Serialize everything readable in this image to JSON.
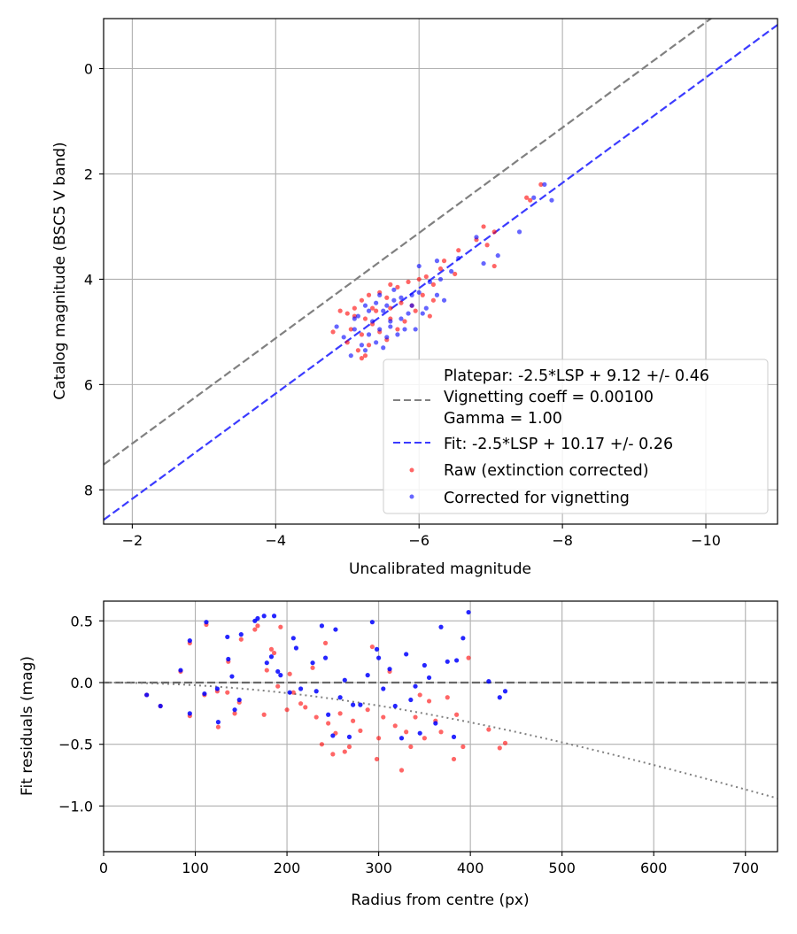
{
  "colors": {
    "raw": "#ff0000",
    "corrected": "#0000ff",
    "platepar_line": "#808080",
    "fit_line": "#3b3bff"
  },
  "chart_data": [
    {
      "type": "scatter",
      "xlabel": "Uncalibrated magnitude",
      "ylabel": "Catalog magnitude (BSC5 V band)",
      "xlim": [
        -1.6,
        -11.0
      ],
      "ylim": [
        8.65,
        -0.95
      ],
      "x_inverted": true,
      "y_inverted": true,
      "xticks": [
        -2,
        -4,
        -6,
        -8,
        -10
      ],
      "xtick_labels": [
        "−2",
        "−4",
        "−6",
        "−8",
        "−10"
      ],
      "yticks": [
        0,
        2,
        4,
        6,
        8
      ],
      "ytick_labels": [
        "0",
        "2",
        "4",
        "6",
        "8"
      ],
      "grid": true,
      "legend_position": "lower-right",
      "legend": [
        {
          "kind": "blank",
          "label": "Platepar: -2.5*LSP + 9.12 +/- 0.46"
        },
        {
          "kind": "dashed",
          "color": "#808080",
          "label": "Vignetting coeff = 0.00100"
        },
        {
          "kind": "blank",
          "label": "Gamma = 1.00"
        },
        {
          "kind": "dashed",
          "color": "#3b3bff",
          "label": "Fit: -2.5*LSP + 10.17 +/- 0.26"
        },
        {
          "kind": "marker",
          "color": "#ff0000",
          "label": "Raw (extinction corrected)"
        },
        {
          "kind": "marker",
          "color": "#0000ff",
          "label": "Corrected for vignetting"
        }
      ],
      "lines": [
        {
          "name": "Platepar",
          "slope": 1,
          "intercept": 9.12,
          "style": "dashed",
          "color": "#808080"
        },
        {
          "name": "Fit",
          "slope": 1,
          "intercept": 10.17,
          "style": "dashed",
          "color": "#3b3bff"
        }
      ],
      "series": [
        {
          "name": "Raw (extinction corrected)",
          "color": "#ff0000",
          "points": [
            [
              -7.7,
              2.2
            ],
            [
              -7.55,
              2.5
            ],
            [
              -7.5,
              2.45
            ],
            [
              -7.05,
              3.1
            ],
            [
              -6.9,
              3.0
            ],
            [
              -6.95,
              3.35
            ],
            [
              -7.05,
              3.75
            ],
            [
              -6.8,
              3.25
            ],
            [
              -6.55,
              3.45
            ],
            [
              -6.35,
              3.65
            ],
            [
              -6.3,
              3.8
            ],
            [
              -6.1,
              3.95
            ],
            [
              -6.5,
              3.9
            ],
            [
              -6.2,
              4.1
            ],
            [
              -6.0,
              4.0
            ],
            [
              -5.85,
              4.05
            ],
            [
              -5.7,
              4.15
            ],
            [
              -5.6,
              4.1
            ],
            [
              -5.45,
              4.25
            ],
            [
              -5.3,
              4.3
            ],
            [
              -5.2,
              4.4
            ],
            [
              -5.55,
              4.35
            ],
            [
              -5.75,
              4.45
            ],
            [
              -5.9,
              4.5
            ],
            [
              -6.05,
              4.3
            ],
            [
              -6.2,
              4.4
            ],
            [
              -5.4,
              4.6
            ],
            [
              -5.1,
              4.55
            ],
            [
              -5.0,
              4.65
            ],
            [
              -4.9,
              4.6
            ],
            [
              -5.25,
              4.75
            ],
            [
              -5.35,
              4.85
            ],
            [
              -5.6,
              4.75
            ],
            [
              -5.8,
              4.8
            ],
            [
              -5.05,
              4.95
            ],
            [
              -4.8,
              5.0
            ],
            [
              -5.2,
              5.05
            ],
            [
              -5.45,
              5.0
            ],
            [
              -5.7,
              4.95
            ],
            [
              -5.55,
              5.15
            ],
            [
              -5.3,
              5.25
            ],
            [
              -5.15,
              5.35
            ],
            [
              -5.2,
              5.5
            ],
            [
              -5.0,
              5.2
            ],
            [
              -5.6,
              4.55
            ],
            [
              -5.95,
              4.6
            ],
            [
              -6.15,
              4.7
            ],
            [
              -5.35,
              4.55
            ],
            [
              -5.1,
              4.7
            ],
            [
              -5.25,
              5.45
            ]
          ]
        },
        {
          "name": "Corrected for vignetting",
          "color": "#0000ff",
          "points": [
            [
              -7.85,
              2.5
            ],
            [
              -7.75,
              2.2
            ],
            [
              -7.6,
              2.45
            ],
            [
              -7.4,
              3.1
            ],
            [
              -7.1,
              3.55
            ],
            [
              -6.8,
              3.2
            ],
            [
              -6.9,
              3.7
            ],
            [
              -6.55,
              3.6
            ],
            [
              -6.45,
              3.85
            ],
            [
              -6.25,
              3.65
            ],
            [
              -6.15,
              4.05
            ],
            [
              -6.0,
              3.75
            ],
            [
              -6.3,
              4.0
            ],
            [
              -6.25,
              4.3
            ],
            [
              -6.0,
              4.25
            ],
            [
              -5.9,
              4.5
            ],
            [
              -5.75,
              4.35
            ],
            [
              -5.65,
              4.2
            ],
            [
              -5.55,
              4.5
            ],
            [
              -5.4,
              4.45
            ],
            [
              -5.3,
              4.6
            ],
            [
              -5.15,
              4.7
            ],
            [
              -5.5,
              4.6
            ],
            [
              -5.6,
              4.8
            ],
            [
              -5.85,
              4.65
            ],
            [
              -6.1,
              4.55
            ],
            [
              -5.95,
              4.95
            ],
            [
              -5.7,
              5.05
            ],
            [
              -5.45,
              4.95
            ],
            [
              -5.3,
              5.05
            ],
            [
              -5.1,
              4.95
            ],
            [
              -4.95,
              5.1
            ],
            [
              -5.2,
              5.25
            ],
            [
              -5.4,
              5.2
            ],
            [
              -5.55,
              5.1
            ],
            [
              -5.65,
              4.4
            ],
            [
              -5.45,
              4.3
            ],
            [
              -5.25,
              4.5
            ],
            [
              -5.1,
              4.75
            ],
            [
              -4.85,
              4.9
            ],
            [
              -5.35,
              4.8
            ],
            [
              -5.75,
              4.75
            ],
            [
              -6.05,
              4.65
            ],
            [
              -5.8,
              4.95
            ],
            [
              -5.5,
              5.3
            ],
            [
              -5.05,
              5.45
            ],
            [
              -5.25,
              5.35
            ],
            [
              -5.6,
              4.9
            ],
            [
              -6.35,
              4.4
            ],
            [
              -5.9,
              4.3
            ]
          ]
        }
      ]
    },
    {
      "type": "scatter",
      "xlabel": "Radius from centre (px)",
      "ylabel": "Fit residuals (mag)",
      "xlim": [
        0,
        735
      ],
      "ylim": [
        -1.37,
        0.66
      ],
      "xticks": [
        0,
        100,
        200,
        300,
        400,
        500,
        600,
        700
      ],
      "xtick_labels": [
        "0",
        "100",
        "200",
        "300",
        "400",
        "500",
        "600",
        "700"
      ],
      "yticks": [
        0.5,
        0.0,
        -0.5,
        -1.0
      ],
      "ytick_labels": [
        "0.5",
        "0.0",
        "−0.5",
        "−1.0"
      ],
      "grid": true,
      "reference_lines": [
        {
          "name": "zero",
          "style": "dashed",
          "color": "#555555",
          "y": 0
        },
        {
          "name": "vignetting",
          "style": "dotted",
          "color": "#808080",
          "coefficient": 0.001
        }
      ],
      "series": [
        {
          "name": "Raw (extinction corrected)",
          "color": "#ff0000",
          "points": [
            [
              47,
              -0.1
            ],
            [
              62,
              -0.19
            ],
            [
              84,
              0.09
            ],
            [
              94,
              -0.27
            ],
            [
              94,
              0.32
            ],
            [
              110,
              -0.1
            ],
            [
              112,
              0.47
            ],
            [
              124,
              -0.07
            ],
            [
              125,
              -0.36
            ],
            [
              135,
              -0.08
            ],
            [
              136,
              0.17
            ],
            [
              143,
              -0.25
            ],
            [
              148,
              -0.16
            ],
            [
              150,
              0.35
            ],
            [
              165,
              0.43
            ],
            [
              168,
              0.46
            ],
            [
              175,
              -0.26
            ],
            [
              178,
              0.1
            ],
            [
              183,
              0.27
            ],
            [
              186,
              0.24
            ],
            [
              190,
              -0.03
            ],
            [
              193,
              0.45
            ],
            [
              200,
              -0.22
            ],
            [
              203,
              0.07
            ],
            [
              207,
              -0.08
            ],
            [
              215,
              -0.17
            ],
            [
              220,
              -0.2
            ],
            [
              228,
              0.12
            ],
            [
              232,
              -0.28
            ],
            [
              238,
              -0.5
            ],
            [
              242,
              0.32
            ],
            [
              245,
              -0.33
            ],
            [
              250,
              -0.58
            ],
            [
              253,
              -0.41
            ],
            [
              258,
              -0.25
            ],
            [
              263,
              -0.56
            ],
            [
              268,
              -0.52
            ],
            [
              272,
              -0.31
            ],
            [
              280,
              -0.39
            ],
            [
              288,
              -0.22
            ],
            [
              293,
              0.29
            ],
            [
              298,
              -0.62
            ],
            [
              300,
              -0.45
            ],
            [
              305,
              -0.28
            ],
            [
              312,
              0.09
            ],
            [
              318,
              -0.35
            ],
            [
              325,
              -0.71
            ],
            [
              330,
              -0.4
            ],
            [
              335,
              -0.52
            ],
            [
              340,
              -0.28
            ],
            [
              345,
              -0.1
            ],
            [
              350,
              -0.45
            ],
            [
              355,
              -0.15
            ],
            [
              362,
              -0.31
            ],
            [
              368,
              -0.4
            ],
            [
              375,
              -0.12
            ],
            [
              382,
              -0.62
            ],
            [
              385,
              -0.26
            ],
            [
              392,
              -0.52
            ],
            [
              398,
              0.2
            ],
            [
              420,
              -0.38
            ],
            [
              432,
              -0.53
            ],
            [
              438,
              -0.49
            ]
          ]
        },
        {
          "name": "Corrected for vignetting",
          "color": "#0000ff",
          "points": [
            [
              47,
              -0.1
            ],
            [
              62,
              -0.19
            ],
            [
              84,
              0.1
            ],
            [
              94,
              -0.25
            ],
            [
              94,
              0.34
            ],
            [
              110,
              -0.09
            ],
            [
              112,
              0.49
            ],
            [
              124,
              -0.05
            ],
            [
              125,
              -0.32
            ],
            [
              135,
              0.37
            ],
            [
              136,
              0.19
            ],
            [
              140,
              0.05
            ],
            [
              143,
              -0.22
            ],
            [
              148,
              -0.14
            ],
            [
              150,
              0.39
            ],
            [
              165,
              0.5
            ],
            [
              168,
              0.52
            ],
            [
              175,
              0.54
            ],
            [
              178,
              0.16
            ],
            [
              183,
              0.21
            ],
            [
              186,
              0.54
            ],
            [
              190,
              0.09
            ],
            [
              193,
              0.06
            ],
            [
              203,
              -0.08
            ],
            [
              207,
              0.36
            ],
            [
              210,
              0.28
            ],
            [
              215,
              -0.05
            ],
            [
              228,
              0.16
            ],
            [
              232,
              -0.07
            ],
            [
              238,
              0.46
            ],
            [
              242,
              0.2
            ],
            [
              245,
              -0.26
            ],
            [
              250,
              -0.43
            ],
            [
              253,
              0.43
            ],
            [
              258,
              -0.12
            ],
            [
              263,
              0.02
            ],
            [
              268,
              -0.44
            ],
            [
              272,
              -0.18
            ],
            [
              280,
              -0.18
            ],
            [
              288,
              0.06
            ],
            [
              293,
              0.49
            ],
            [
              298,
              0.27
            ],
            [
              300,
              0.2
            ],
            [
              305,
              -0.05
            ],
            [
              312,
              0.11
            ],
            [
              318,
              -0.19
            ],
            [
              325,
              -0.45
            ],
            [
              330,
              0.23
            ],
            [
              335,
              -0.14
            ],
            [
              340,
              -0.03
            ],
            [
              345,
              -0.41
            ],
            [
              350,
              0.14
            ],
            [
              355,
              0.04
            ],
            [
              362,
              -0.33
            ],
            [
              368,
              0.45
            ],
            [
              375,
              0.17
            ],
            [
              382,
              -0.44
            ],
            [
              385,
              0.18
            ],
            [
              392,
              0.36
            ],
            [
              398,
              0.57
            ],
            [
              420,
              0.01
            ],
            [
              432,
              -0.12
            ],
            [
              438,
              -0.07
            ]
          ]
        }
      ]
    }
  ]
}
